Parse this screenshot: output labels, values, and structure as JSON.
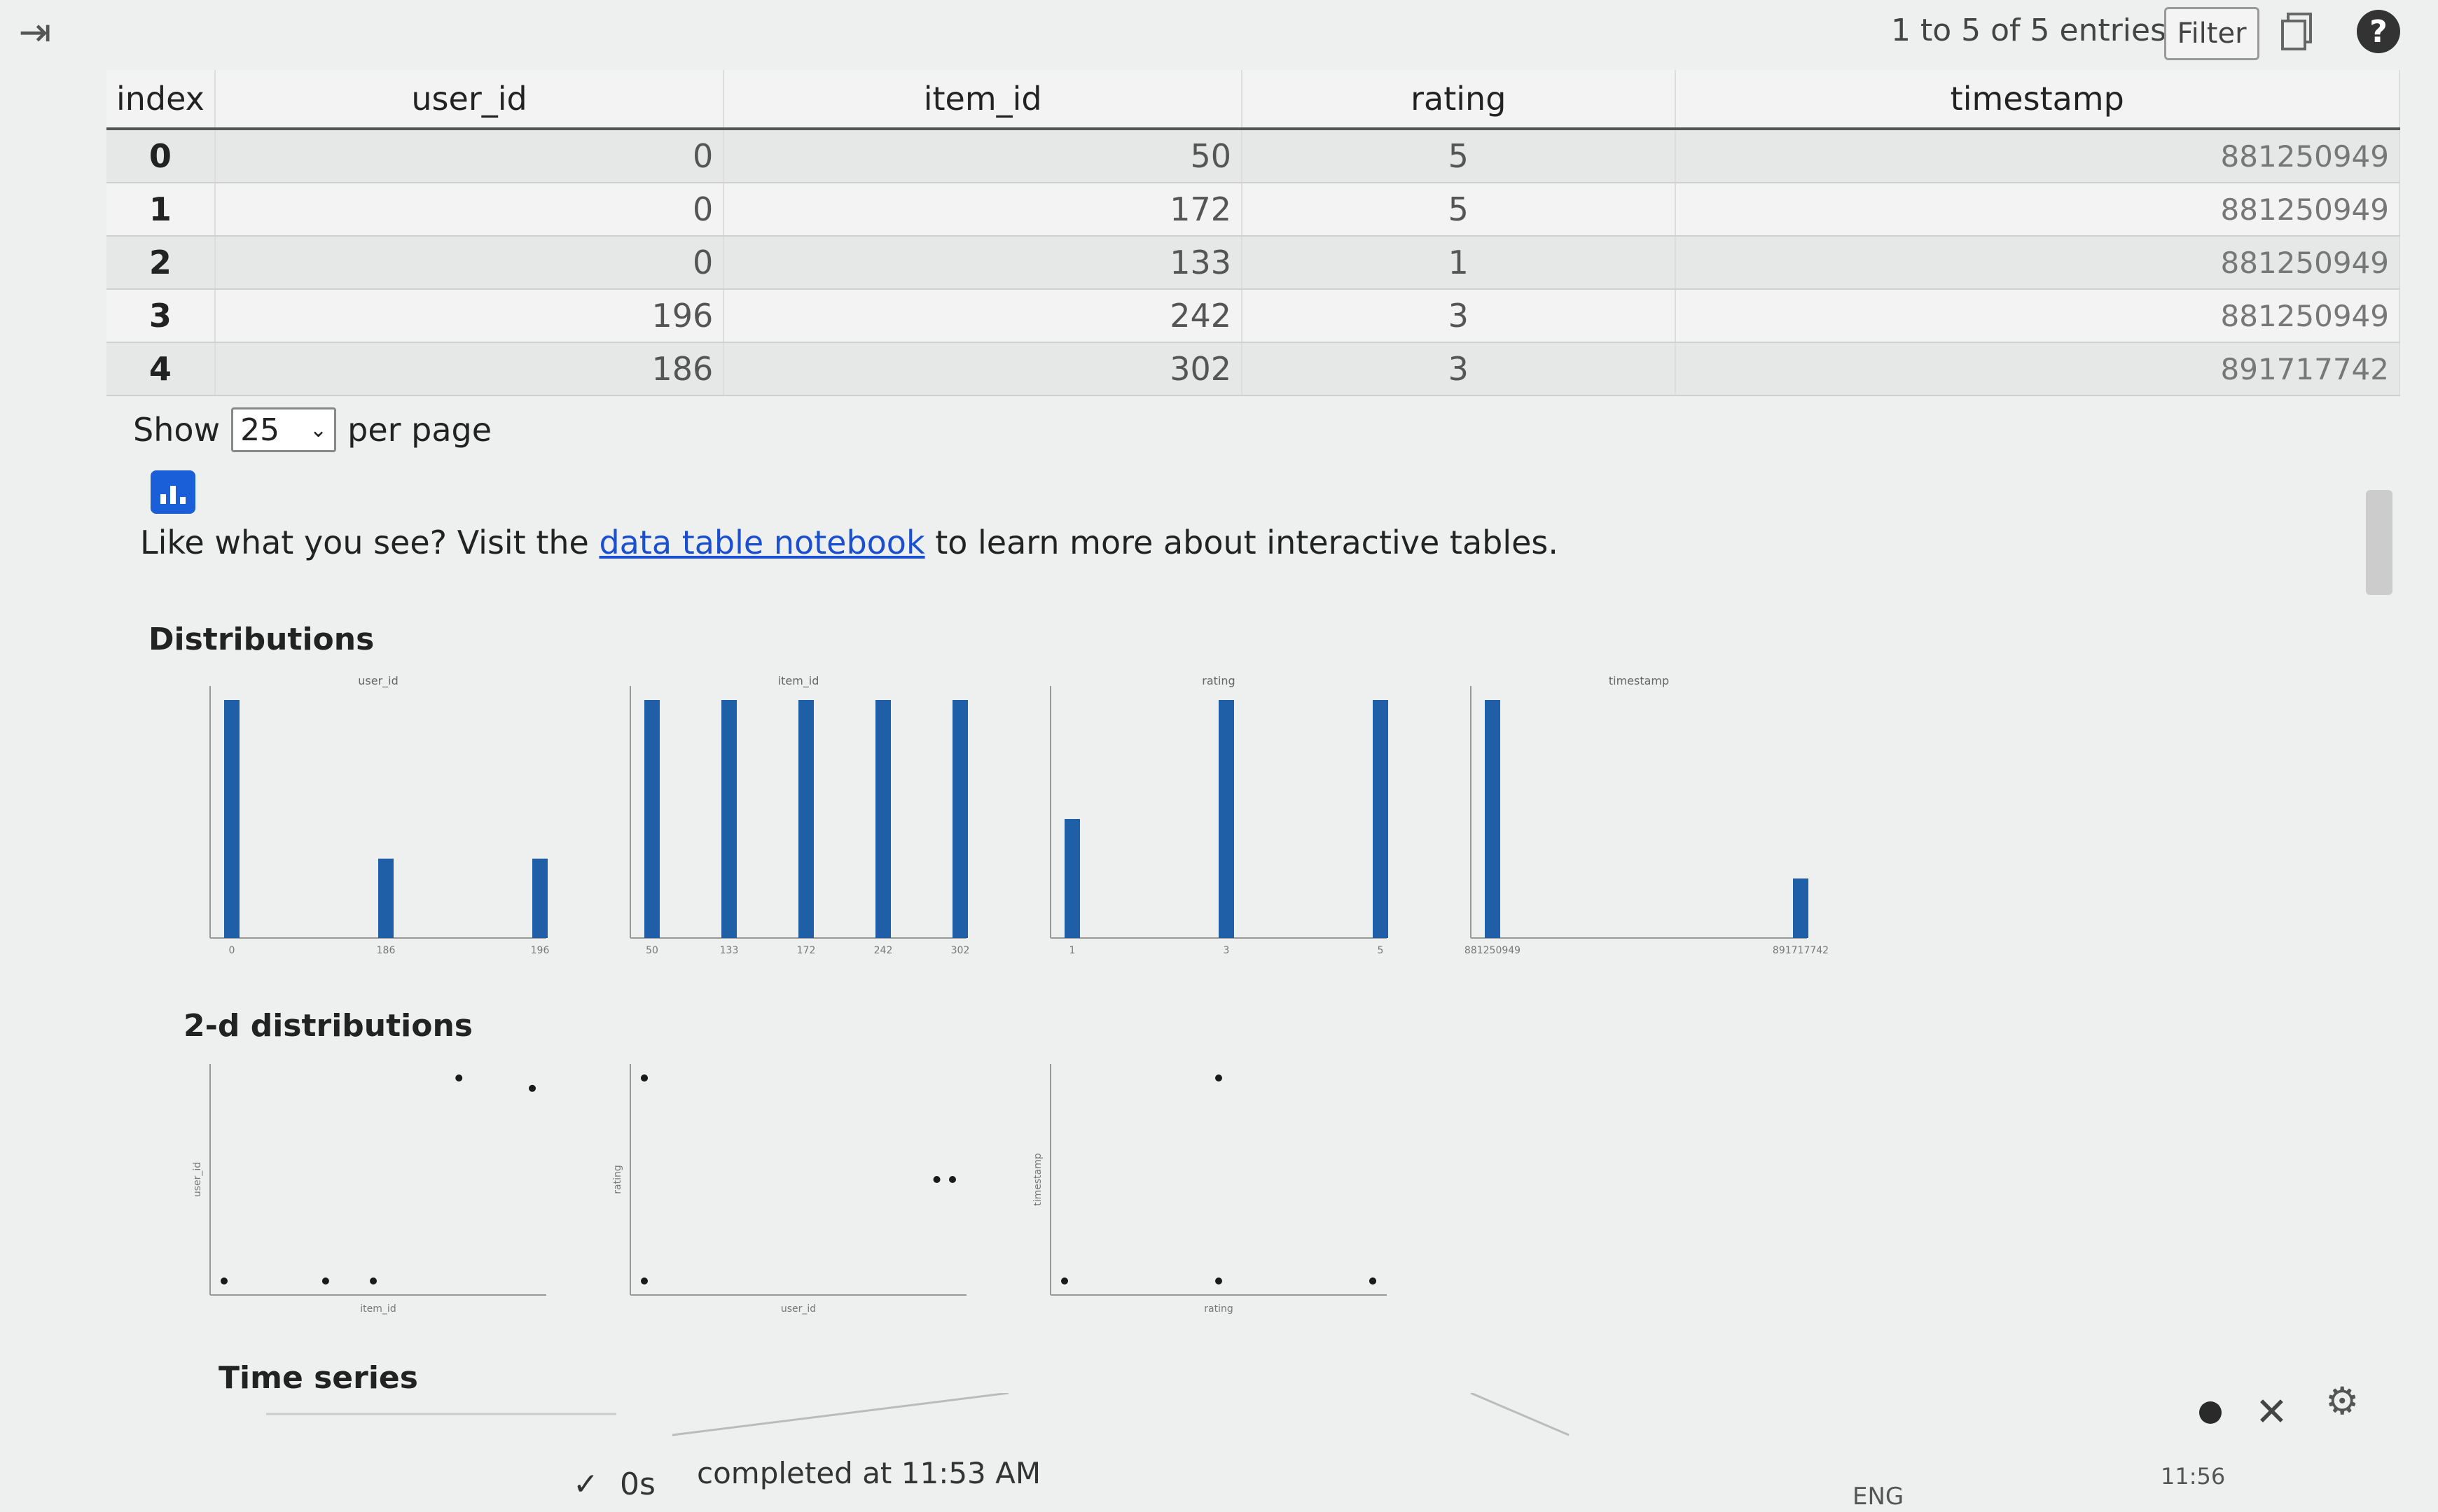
{
  "toolbar": {
    "entries_text": "1 to 5 of 5 entries",
    "filter_label": "Filter",
    "help_label": "?"
  },
  "table": {
    "headers": [
      "index",
      "user_id",
      "item_id",
      "rating",
      "timestamp"
    ],
    "rows": [
      [
        "0",
        "0",
        "50",
        "5",
        "881250949"
      ],
      [
        "1",
        "0",
        "172",
        "5",
        "881250949"
      ],
      [
        "2",
        "0",
        "133",
        "1",
        "881250949"
      ],
      [
        "3",
        "196",
        "242",
        "3",
        "881250949"
      ],
      [
        "4",
        "186",
        "302",
        "3",
        "891717742"
      ]
    ]
  },
  "pagination": {
    "show_label": "Show",
    "per_page_value": "25",
    "per_page_label": "per page"
  },
  "promo": {
    "prefix": "Like what you see? Visit the ",
    "link_text": "data table notebook",
    "suffix": " to learn more about interactive tables."
  },
  "sections": {
    "distributions": "Distributions",
    "two_d": "2-d distributions",
    "time_series": "Time series"
  },
  "status": {
    "check": "✓",
    "duration": "0s",
    "completed": "completed at 11:53 AM",
    "lang": "ENG",
    "clock": "11:56"
  },
  "chart_data": [
    {
      "type": "bar",
      "title": "user_id",
      "categories": [
        "0",
        "186",
        "196"
      ],
      "values": [
        3,
        1,
        1
      ],
      "ylim": [
        0,
        3
      ]
    },
    {
      "type": "bar",
      "title": "item_id",
      "categories": [
        "50",
        "133",
        "172",
        "242",
        "302"
      ],
      "values": [
        1,
        1,
        1,
        1,
        1
      ],
      "ylim": [
        0,
        1
      ]
    },
    {
      "type": "bar",
      "title": "rating",
      "categories": [
        "1",
        "3",
        "5"
      ],
      "values": [
        1,
        2,
        2
      ],
      "ylim": [
        0,
        2
      ]
    },
    {
      "type": "bar",
      "title": "timestamp",
      "categories": [
        "881250949",
        "891717742"
      ],
      "values": [
        4,
        1
      ],
      "ylim": [
        0,
        4
      ]
    },
    {
      "type": "scatter",
      "x": [
        50,
        172,
        133,
        242,
        302
      ],
      "y": [
        0,
        0,
        0,
        196,
        186
      ],
      "xlabel": "item_id",
      "ylabel": "user_id"
    },
    {
      "type": "scatter",
      "x": [
        0,
        0,
        0,
        196,
        186
      ],
      "y": [
        5,
        5,
        1,
        3,
        3
      ],
      "xlabel": "user_id",
      "ylabel": "rating"
    },
    {
      "type": "scatter",
      "x": [
        5,
        5,
        1,
        3,
        3
      ],
      "y": [
        881250949,
        881250949,
        881250949,
        881250949,
        891717742
      ],
      "xlabel": "rating",
      "ylabel": "timestamp"
    }
  ],
  "colors": {
    "bar": "#1f5fa8",
    "link": "#1a4fd0",
    "accent": "#1a5fd8"
  }
}
